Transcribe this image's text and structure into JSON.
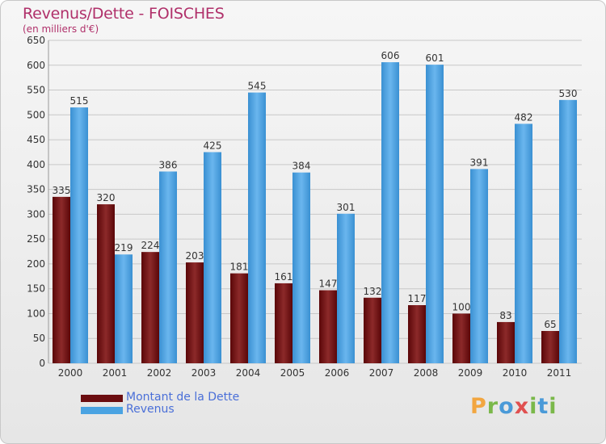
{
  "header": {
    "title": "Revenus/Dette - FOISCHES",
    "subtitle": "(en milliers d'€)"
  },
  "colors": {
    "dette": "#6b0d10",
    "revenus": "#4aa3e2",
    "grid": "#c8c8c8",
    "title": "#b0306a"
  },
  "legend": {
    "items": [
      {
        "label": "Montant de la Dette",
        "color": "#6b0d10"
      },
      {
        "label": "Revenus",
        "color": "#4aa3e2"
      }
    ]
  },
  "logo": {
    "text": "Proxiti"
  },
  "chart_data": {
    "type": "bar",
    "title": "Revenus/Dette - FOISCHES",
    "subtitle": "(en milliers d'€)",
    "xlabel": "",
    "ylabel": "",
    "ylim": [
      0,
      650
    ],
    "yticks": [
      0,
      50,
      100,
      150,
      200,
      250,
      300,
      350,
      400,
      450,
      500,
      550,
      600,
      650
    ],
    "grid": true,
    "legend_position": "bottom-left",
    "categories": [
      "2000",
      "2001",
      "2002",
      "2003",
      "2004",
      "2005",
      "2006",
      "2007",
      "2008",
      "2009",
      "2010",
      "2011"
    ],
    "series": [
      {
        "name": "Montant de la Dette",
        "values": [
          335,
          320,
          224,
          203,
          181,
          161,
          147,
          132,
          117,
          100,
          83,
          65
        ]
      },
      {
        "name": "Revenus",
        "values": [
          515,
          219,
          386,
          425,
          545,
          384,
          301,
          606,
          601,
          391,
          482,
          530
        ]
      }
    ]
  }
}
